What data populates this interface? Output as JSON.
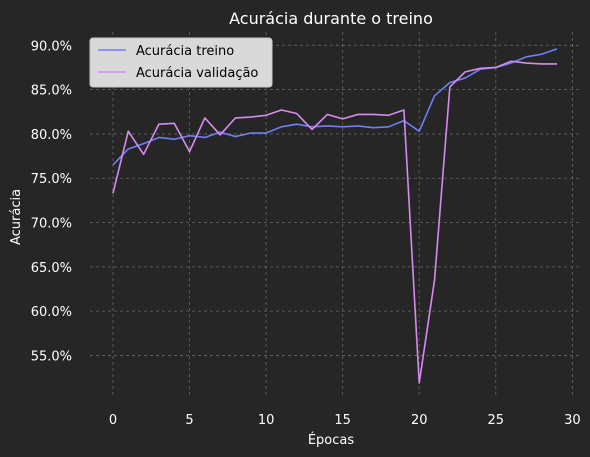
{
  "chart_data": {
    "type": "line",
    "title": "Acurácia durante o treino",
    "xlabel": "Épocas",
    "ylabel": "Acurácia",
    "xlim": [
      -1.5,
      30.5
    ],
    "ylim": [
      50.2,
      91.5
    ],
    "xticks": [
      0,
      5,
      10,
      15,
      20,
      25,
      30
    ],
    "yticks": [
      55,
      60,
      65,
      70,
      75,
      80,
      85,
      90
    ],
    "ytick_format": "percent_1dp",
    "grid": true,
    "legend_position": "upper-left",
    "x": [
      0,
      1,
      2,
      3,
      4,
      5,
      6,
      7,
      8,
      9,
      10,
      11,
      12,
      13,
      14,
      15,
      16,
      17,
      18,
      19,
      20,
      21,
      22,
      23,
      24,
      25,
      26,
      27,
      28,
      29
    ],
    "series": [
      {
        "name": "Acurácia treino",
        "color": "#6f7ff4",
        "values": [
          76.5,
          78.3,
          78.9,
          79.6,
          79.4,
          79.8,
          79.6,
          80.2,
          79.7,
          80.1,
          80.1,
          80.8,
          81.1,
          80.8,
          80.9,
          80.8,
          80.9,
          80.7,
          80.8,
          81.5,
          80.3,
          84.3,
          85.8,
          86.3,
          87.3,
          87.5,
          88.0,
          88.7,
          89.0,
          89.6
        ]
      },
      {
        "name": "Acurácia validação",
        "color": "#d68bef",
        "values": [
          73.3,
          80.3,
          77.7,
          81.1,
          81.2,
          78.0,
          81.8,
          79.9,
          81.8,
          81.9,
          82.1,
          82.7,
          82.3,
          80.5,
          82.2,
          81.7,
          82.2,
          82.2,
          82.1,
          82.7,
          51.9,
          63.5,
          85.3,
          87.0,
          87.4,
          87.5,
          88.2,
          88.0,
          87.9,
          87.9
        ]
      }
    ]
  }
}
